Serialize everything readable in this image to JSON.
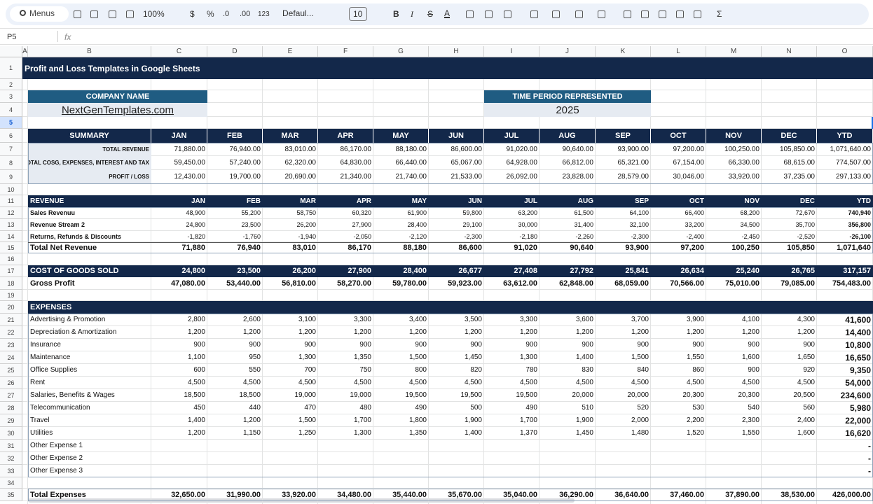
{
  "toolbar": {
    "menus": "Menus",
    "zoom": "100%",
    "currency": "$",
    "percent": "%",
    "decrease_decimal": ".0",
    "increase_decimal": ".00",
    "number_format": "123",
    "font": "Defaul...",
    "font_size": "10",
    "bold": "B",
    "italic": "I",
    "strikethrough": "S",
    "text_color": "A",
    "functions": "Σ"
  },
  "formula_bar": {
    "cell": "P5",
    "fx": "fx"
  },
  "columns": [
    "A",
    "B",
    "C",
    "D",
    "E",
    "F",
    "G",
    "H",
    "I",
    "J",
    "K",
    "L",
    "M",
    "N",
    "O"
  ],
  "row_numbers": [
    1,
    2,
    3,
    4,
    5,
    6,
    7,
    8,
    9,
    10,
    11,
    12,
    13,
    14,
    15,
    16,
    17,
    18,
    19,
    20,
    21,
    22,
    23,
    24,
    25,
    26,
    27,
    28,
    29,
    30,
    31,
    32,
    33,
    34,
    35
  ],
  "sheet": {
    "title": "Profit and Loss Templates in Google Sheets",
    "company": {
      "label": "COMPANY NAME",
      "value": "NextGenTemplates.com"
    },
    "period": {
      "label": "TIME PERIOD REPRESENTED",
      "value": "2025"
    },
    "summary": {
      "header": [
        "SUMMARY",
        "JAN",
        "FEB",
        "MAR",
        "APR",
        "MAY",
        "JUN",
        "JUL",
        "AUG",
        "SEP",
        "OCT",
        "NOV",
        "DEC",
        "YTD"
      ],
      "rows": [
        {
          "label": "TOTAL REVENUE",
          "values": [
            "71,880.00",
            "76,940.00",
            "83,010.00",
            "86,170.00",
            "88,180.00",
            "86,600.00",
            "91,020.00",
            "90,640.00",
            "93,900.00",
            "97,200.00",
            "100,250.00",
            "105,850.00"
          ],
          "ytd": "1,071,640.00"
        },
        {
          "label": "TOTAL COSG, EXPENSES, INTEREST AND TAX",
          "values": [
            "59,450.00",
            "57,240.00",
            "62,320.00",
            "64,830.00",
            "66,440.00",
            "65,067.00",
            "64,928.00",
            "66,812.00",
            "65,321.00",
            "67,154.00",
            "66,330.00",
            "68,615.00"
          ],
          "ytd": "774,507.00"
        },
        {
          "label": "PROFIT / LOSS",
          "values": [
            "12,430.00",
            "19,700.00",
            "20,690.00",
            "21,340.00",
            "21,740.00",
            "21,533.00",
            "26,092.00",
            "23,828.00",
            "28,579.00",
            "30,046.00",
            "33,920.00",
            "37,235.00"
          ],
          "ytd": "297,133.00"
        }
      ]
    },
    "revenue": {
      "header": [
        "REVENUE",
        "JAN",
        "FEB",
        "MAR",
        "APR",
        "MAY",
        "JUN",
        "JUL",
        "AUG",
        "SEP",
        "OCT",
        "NOV",
        "DEC",
        "YTD"
      ],
      "rows": [
        {
          "label": "Sales Revenuu",
          "values": [
            "48,900",
            "55,200",
            "58,750",
            "60,320",
            "61,900",
            "59,800",
            "63,200",
            "61,500",
            "64,100",
            "66,400",
            "68,200",
            "72,670"
          ],
          "ytd": "740,940"
        },
        {
          "label": "Revenue Stream 2",
          "values": [
            "24,800",
            "23,500",
            "26,200",
            "27,900",
            "28,400",
            "29,100",
            "30,000",
            "31,400",
            "32,100",
            "33,200",
            "34,500",
            "35,700"
          ],
          "ytd": "356,800"
        },
        {
          "label": "Returns, Refunds & Discounts",
          "values": [
            "-1,820",
            "-1,760",
            "-1,940",
            "-2,050",
            "-2,120",
            "-2,300",
            "-2,180",
            "-2,260",
            "-2,300",
            "-2,400",
            "-2,450",
            "-2,520"
          ],
          "ytd": "-26,100"
        }
      ],
      "total": {
        "label": "Total Net Revenue",
        "values": [
          "71,880",
          "76,940",
          "83,010",
          "86,170",
          "88,180",
          "86,600",
          "91,020",
          "90,640",
          "93,900",
          "97,200",
          "100,250",
          "105,850"
        ],
        "ytd": "1,071,640"
      }
    },
    "cogs": {
      "label": "COST OF GOODS SOLD",
      "values": [
        "24,800",
        "23,500",
        "26,200",
        "27,900",
        "28,400",
        "26,677",
        "27,408",
        "27,792",
        "25,841",
        "26,634",
        "25,240",
        "26,765"
      ],
      "ytd": "317,157"
    },
    "gross_profit": {
      "label": "Gross Profit",
      "values": [
        "47,080.00",
        "53,440.00",
        "56,810.00",
        "58,270.00",
        "59,780.00",
        "59,923.00",
        "63,612.00",
        "62,848.00",
        "68,059.00",
        "70,566.00",
        "75,010.00",
        "79,085.00"
      ],
      "ytd": "754,483.00"
    },
    "expenses": {
      "header": "EXPENSES",
      "rows": [
        {
          "label": "Advertising & Promotion",
          "values": [
            "2,800",
            "2,600",
            "3,100",
            "3,300",
            "3,400",
            "3,500",
            "3,300",
            "3,600",
            "3,700",
            "3,900",
            "4,100",
            "4,300"
          ],
          "ytd": "41,600"
        },
        {
          "label": "Depreciation & Amortization",
          "values": [
            "1,200",
            "1,200",
            "1,200",
            "1,200",
            "1,200",
            "1,200",
            "1,200",
            "1,200",
            "1,200",
            "1,200",
            "1,200",
            "1,200"
          ],
          "ytd": "14,400"
        },
        {
          "label": "Insurance",
          "values": [
            "900",
            "900",
            "900",
            "900",
            "900",
            "900",
            "900",
            "900",
            "900",
            "900",
            "900",
            "900"
          ],
          "ytd": "10,800"
        },
        {
          "label": "Maintenance",
          "values": [
            "1,100",
            "950",
            "1,300",
            "1,350",
            "1,500",
            "1,450",
            "1,300",
            "1,400",
            "1,500",
            "1,550",
            "1,600",
            "1,650"
          ],
          "ytd": "16,650"
        },
        {
          "label": "Office Supplies",
          "values": [
            "600",
            "550",
            "700",
            "750",
            "800",
            "820",
            "780",
            "830",
            "840",
            "860",
            "900",
            "920"
          ],
          "ytd": "9,350"
        },
        {
          "label": "Rent",
          "values": [
            "4,500",
            "4,500",
            "4,500",
            "4,500",
            "4,500",
            "4,500",
            "4,500",
            "4,500",
            "4,500",
            "4,500",
            "4,500",
            "4,500"
          ],
          "ytd": "54,000"
        },
        {
          "label": "Salaries, Benefits & Wages",
          "values": [
            "18,500",
            "18,500",
            "19,000",
            "19,000",
            "19,500",
            "19,500",
            "19,500",
            "20,000",
            "20,000",
            "20,300",
            "20,300",
            "20,500"
          ],
          "ytd": "234,600"
        },
        {
          "label": "Telecommunication",
          "values": [
            "450",
            "440",
            "470",
            "480",
            "490",
            "500",
            "490",
            "510",
            "520",
            "530",
            "540",
            "560"
          ],
          "ytd": "5,980"
        },
        {
          "label": "Travel",
          "values": [
            "1,400",
            "1,200",
            "1,500",
            "1,700",
            "1,800",
            "1,900",
            "1,700",
            "1,900",
            "2,000",
            "2,200",
            "2,300",
            "2,400"
          ],
          "ytd": "22,000"
        },
        {
          "label": "Utilities",
          "values": [
            "1,200",
            "1,150",
            "1,250",
            "1,300",
            "1,350",
            "1,400",
            "1,370",
            "1,450",
            "1,480",
            "1,520",
            "1,550",
            "1,600"
          ],
          "ytd": "16,620"
        },
        {
          "label": "Other Expense 1",
          "ytd": "-"
        },
        {
          "label": "Other Expense 2",
          "ytd": "-"
        },
        {
          "label": "Other Expense 3",
          "ytd": "-"
        }
      ],
      "total": {
        "label": "Total Expenses",
        "values": [
          "32,650.00",
          "31,990.00",
          "33,920.00",
          "34,480.00",
          "35,440.00",
          "35,670.00",
          "35,040.00",
          "36,290.00",
          "36,640.00",
          "37,460.00",
          "37,890.00",
          "38,530.00"
        ],
        "ytd": "426,000.00"
      }
    }
  }
}
